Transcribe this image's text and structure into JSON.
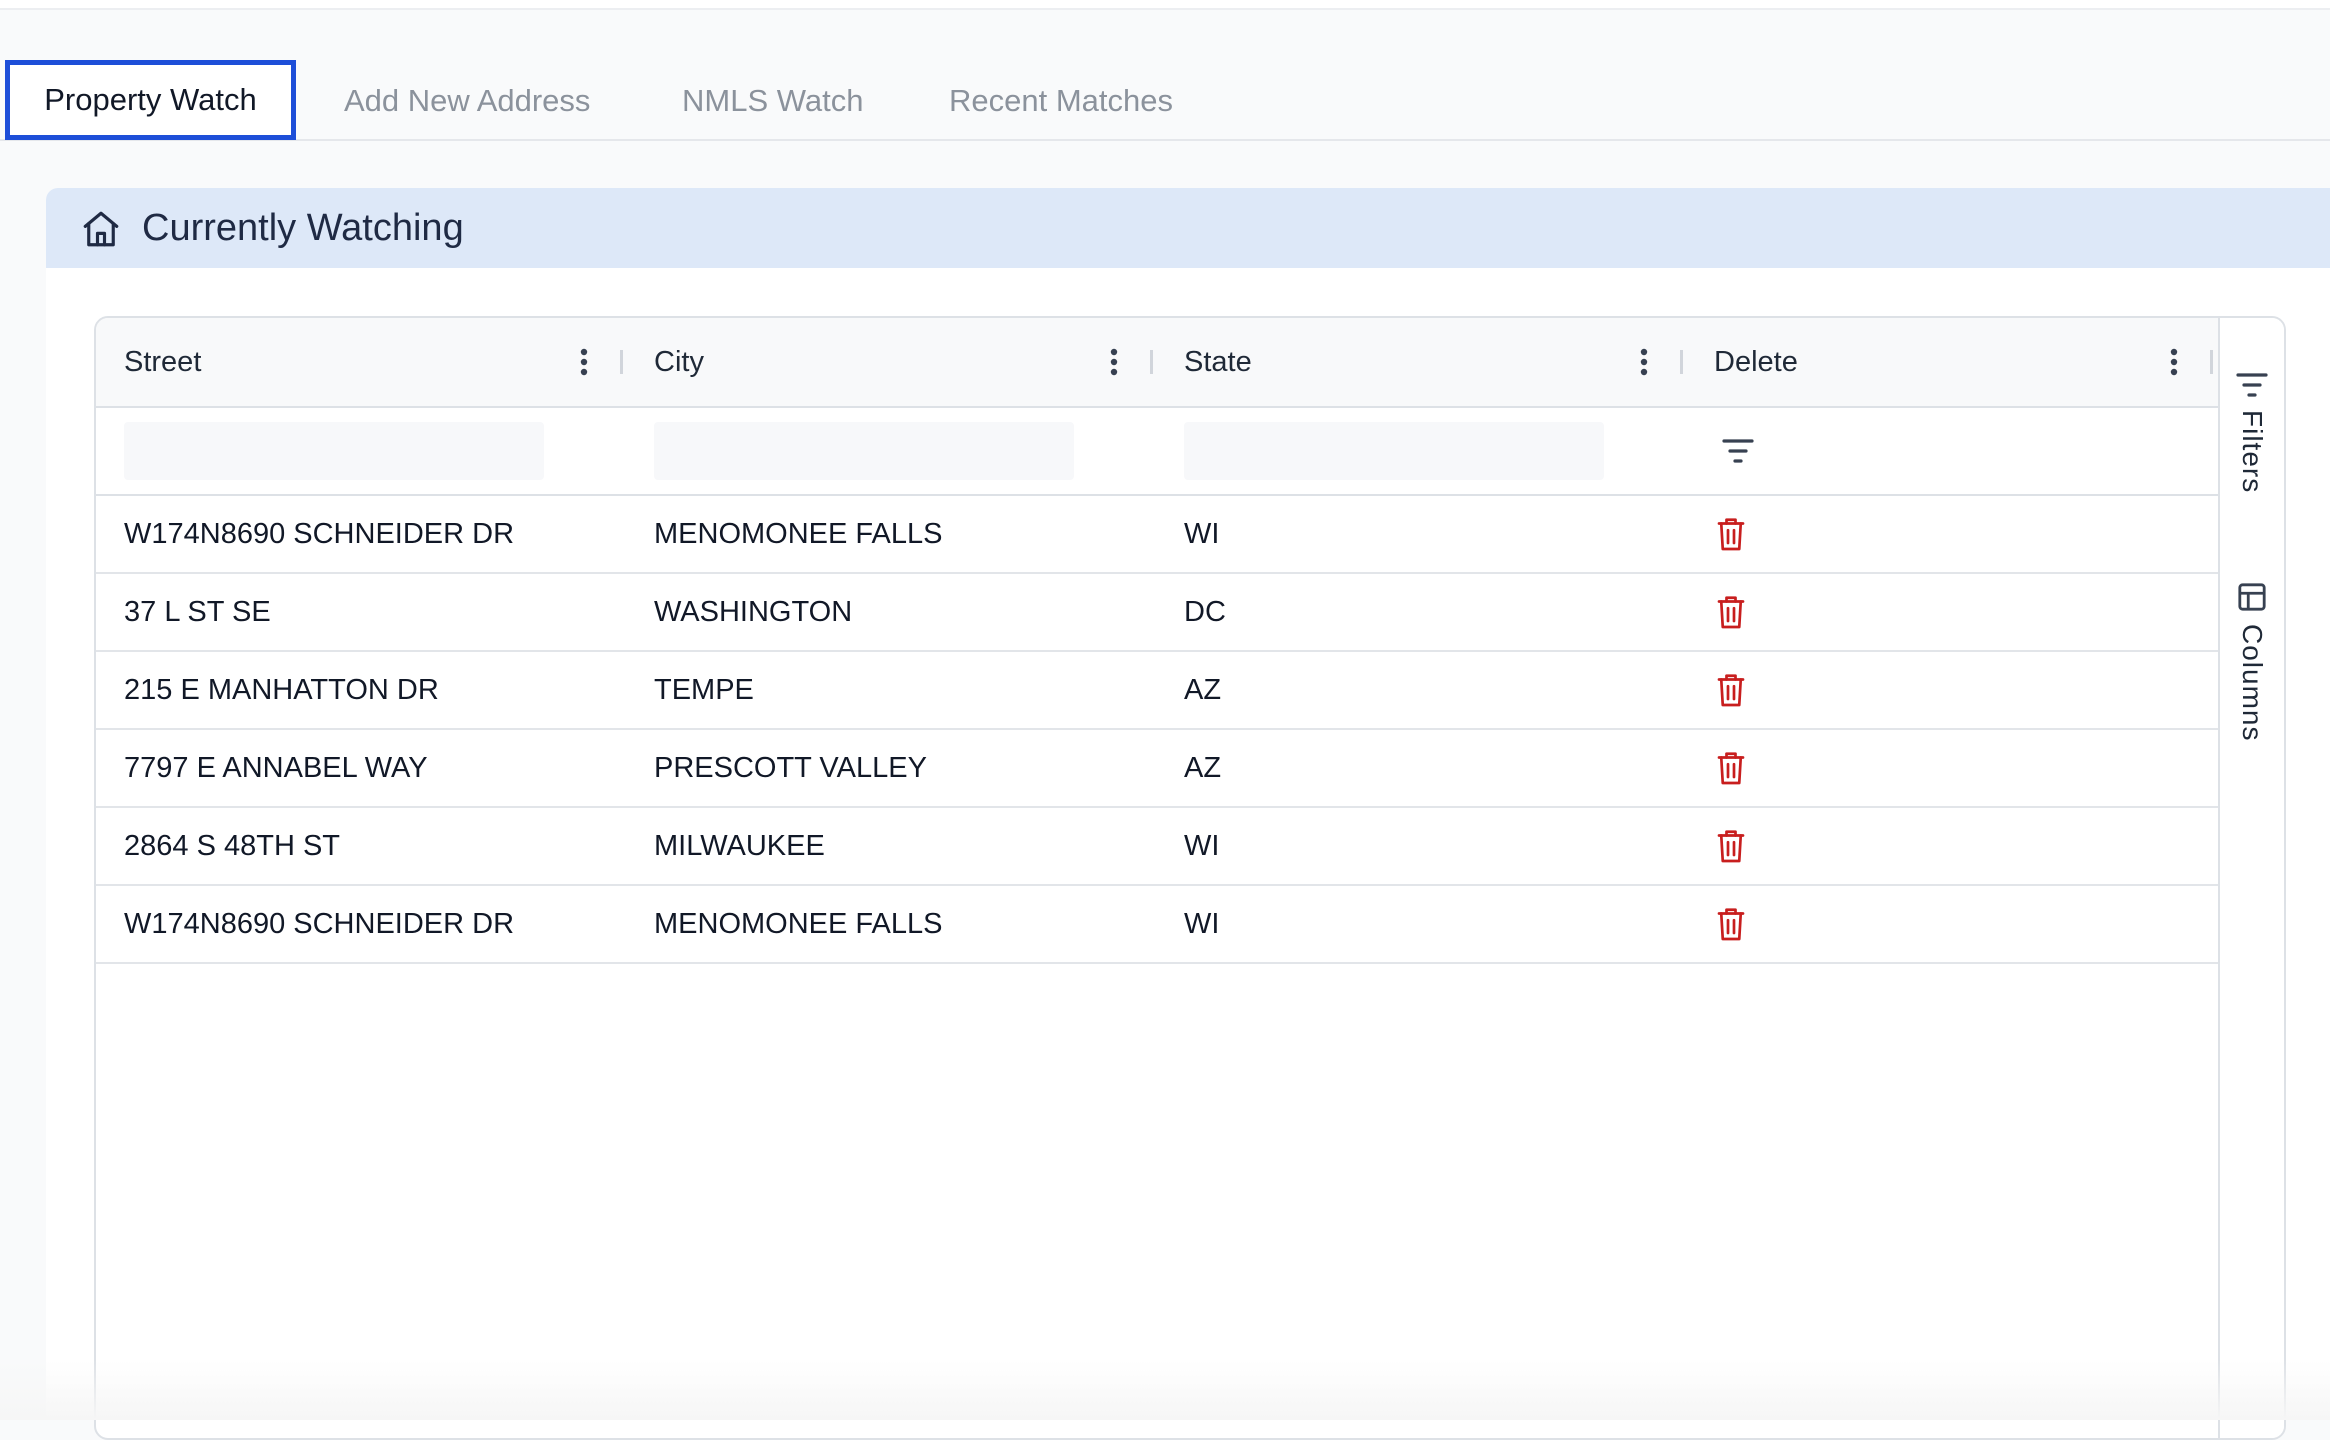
{
  "tabs": [
    {
      "label": "Property Watch",
      "active": true
    },
    {
      "label": "Add New Address",
      "active": false
    },
    {
      "label": "NMLS Watch",
      "active": false
    },
    {
      "label": "Recent Matches",
      "active": false
    }
  ],
  "panel": {
    "title": "Currently Watching",
    "icon": "home-icon"
  },
  "grid": {
    "columns": [
      "Street",
      "City",
      "State",
      "Delete"
    ],
    "filters": {
      "street": "",
      "city": "",
      "state": ""
    },
    "rows": [
      {
        "street": "W174N8690 SCHNEIDER DR",
        "city": "MENOMONEE FALLS",
        "state": "WI"
      },
      {
        "street": "37 L ST SE",
        "city": "WASHINGTON",
        "state": "DC"
      },
      {
        "street": "215 E MANHATTON DR",
        "city": "TEMPE",
        "state": "AZ"
      },
      {
        "street": "7797 E ANNABEL WAY",
        "city": "PRESCOTT VALLEY",
        "state": "AZ"
      },
      {
        "street": "2864 S 48TH ST",
        "city": "MILWAUKEE",
        "state": "WI"
      },
      {
        "street": "W174N8690 SCHNEIDER DR",
        "city": "MENOMONEE FALLS",
        "state": "WI"
      }
    ],
    "side_panel": {
      "filters_label": "Filters",
      "columns_label": "Columns"
    }
  },
  "colors": {
    "accent": "#1d4ed8",
    "header_bg": "#dde8f8",
    "delete": "#c81e1e"
  }
}
